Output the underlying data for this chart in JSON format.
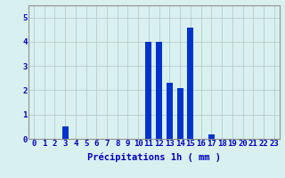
{
  "hours": [
    0,
    1,
    2,
    3,
    4,
    5,
    6,
    7,
    8,
    9,
    10,
    11,
    12,
    13,
    14,
    15,
    16,
    17,
    18,
    19,
    20,
    21,
    22,
    23
  ],
  "values": [
    0,
    0,
    0,
    0.5,
    0,
    0,
    0,
    0,
    0,
    0,
    0,
    4.0,
    4.0,
    2.3,
    2.1,
    4.6,
    0,
    0.2,
    0,
    0,
    0,
    0,
    0,
    0
  ],
  "bar_color": "#0033cc",
  "background_color": "#d8f0f0",
  "grid_color": "#b8cccc",
  "text_color": "#0000bb",
  "xlabel": "Précipitations 1h ( mm )",
  "ylim": [
    0,
    5.5
  ],
  "yticks": [
    0,
    1,
    2,
    3,
    4,
    5
  ],
  "xlabel_fontsize": 7.5,
  "tick_fontsize": 6.5
}
